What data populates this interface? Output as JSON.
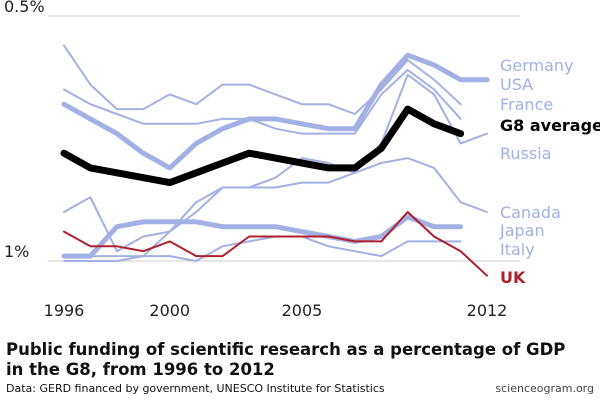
{
  "chart_data": {
    "type": "line",
    "title": "Public funding of scientific research as a percentage of GDP in the G8, from 1996 to 2012",
    "source": "Data: GERD financed by government, UNESCO Institute for Statistics",
    "credit": "scienceogram.org",
    "xlim": [
      1996,
      2012
    ],
    "ylim": [
      0.45,
      1.0
    ],
    "x_ticks": [
      "1996",
      "2000",
      "2005",
      "2012"
    ],
    "y_ticks": [
      "0.5%",
      "1%"
    ],
    "grid": "horizontal",
    "colors": {
      "country": "#a3b0e4",
      "average": "#000000",
      "uk": "#b0202c"
    },
    "series": [
      {
        "name": "Germany",
        "style": "thick-light",
        "x": [
          1996,
          1997,
          1998,
          1999,
          2000,
          2001,
          2002,
          2003,
          2004,
          2005,
          2006,
          2007,
          2008,
          2009,
          2010,
          2011,
          2012
        ],
        "values": [
          0.82,
          0.79,
          0.76,
          0.72,
          0.69,
          0.74,
          0.77,
          0.79,
          0.79,
          0.78,
          0.77,
          0.77,
          0.86,
          0.92,
          0.9,
          0.87,
          0.87
        ]
      },
      {
        "name": "USA",
        "style": "light",
        "x": [
          1996,
          1997,
          1998,
          1999,
          2000,
          2001,
          2002,
          2003,
          2004,
          2005,
          2006,
          2007,
          2008,
          2009,
          2010,
          2011
        ],
        "values": [
          0.94,
          0.86,
          0.81,
          0.81,
          0.84,
          0.82,
          0.86,
          0.86,
          0.84,
          0.82,
          0.82,
          0.8,
          0.85,
          0.91,
          0.87,
          0.82
        ]
      },
      {
        "name": "France",
        "style": "light",
        "x": [
          1996,
          1997,
          1998,
          1999,
          2000,
          2001,
          2002,
          2003,
          2004,
          2005,
          2006,
          2007,
          2008,
          2009,
          2010,
          2011
        ],
        "values": [
          0.85,
          0.82,
          0.8,
          0.78,
          0.78,
          0.78,
          0.79,
          0.79,
          0.77,
          0.76,
          0.76,
          0.76,
          0.84,
          0.89,
          0.85,
          0.79
        ]
      },
      {
        "name": "Russia",
        "style": "light",
        "x": [
          1997,
          1998,
          1999,
          2000,
          2001,
          2002,
          2003,
          2004,
          2005,
          2006,
          2007,
          2008,
          2009,
          2010,
          2011,
          2012
        ],
        "values": [
          0.51,
          0.51,
          0.51,
          0.56,
          0.62,
          0.65,
          0.65,
          0.67,
          0.71,
          0.7,
          0.68,
          0.74,
          0.88,
          0.84,
          0.74,
          0.76
        ]
      },
      {
        "name": "Canada",
        "style": "light",
        "x": [
          1996,
          1997,
          1998,
          1999,
          2000,
          2001,
          2002,
          2003,
          2004,
          2005,
          2006,
          2007,
          2008,
          2009,
          2010,
          2011,
          2012
        ],
        "values": [
          0.6,
          0.63,
          0.52,
          0.55,
          0.56,
          0.6,
          0.65,
          0.65,
          0.65,
          0.66,
          0.66,
          0.68,
          0.7,
          0.71,
          0.69,
          0.62,
          0.6
        ]
      },
      {
        "name": "Japan",
        "style": "thick-light",
        "x": [
          1996,
          1997,
          1998,
          1999,
          2000,
          2001,
          2002,
          2003,
          2004,
          2005,
          2006,
          2007,
          2008,
          2009,
          2010,
          2011
        ],
        "values": [
          0.51,
          0.51,
          0.57,
          0.58,
          0.58,
          0.58,
          0.57,
          0.57,
          0.57,
          0.56,
          0.55,
          0.54,
          0.55,
          0.59,
          0.57,
          0.57
        ]
      },
      {
        "name": "Italy",
        "style": "light",
        "x": [
          1996,
          1997,
          1998,
          1999,
          2000,
          2001,
          2002,
          2003,
          2004,
          2005,
          2006,
          2007,
          2008,
          2009,
          2010,
          2011
        ],
        "values": [
          0.5,
          0.5,
          0.5,
          0.51,
          0.51,
          0.5,
          0.53,
          0.54,
          0.55,
          0.55,
          0.53,
          0.52,
          0.51,
          0.54,
          0.54,
          0.54
        ]
      },
      {
        "name": "G8 average",
        "style": "average",
        "x": [
          1996,
          1997,
          1998,
          1999,
          2000,
          2001,
          2002,
          2003,
          2004,
          2005,
          2006,
          2007,
          2008,
          2009,
          2010,
          2011
        ],
        "values": [
          0.72,
          0.69,
          0.68,
          0.67,
          0.66,
          0.68,
          0.7,
          0.72,
          0.71,
          0.7,
          0.69,
          0.69,
          0.73,
          0.81,
          0.78,
          0.76
        ]
      },
      {
        "name": "UK",
        "style": "uk",
        "x": [
          1996,
          1997,
          1998,
          1999,
          2000,
          2001,
          2002,
          2003,
          2004,
          2005,
          2006,
          2007,
          2008,
          2009,
          2010,
          2011,
          2012
        ],
        "values": [
          0.56,
          0.53,
          0.53,
          0.52,
          0.54,
          0.51,
          0.51,
          0.55,
          0.55,
          0.55,
          0.55,
          0.54,
          0.54,
          0.6,
          0.55,
          0.52,
          0.47
        ]
      }
    ],
    "legend_labels": [
      {
        "text": "Germany",
        "kind": "country"
      },
      {
        "text": "USA",
        "kind": "country"
      },
      {
        "text": "France",
        "kind": "country"
      },
      {
        "text": "G8 average",
        "kind": "average"
      },
      {
        "text": "Russia",
        "kind": "country"
      },
      {
        "text": "Canada",
        "kind": "country"
      },
      {
        "text": "Japan",
        "kind": "country"
      },
      {
        "text": "Italy",
        "kind": "country"
      },
      {
        "text": "UK",
        "kind": "uk"
      }
    ]
  }
}
